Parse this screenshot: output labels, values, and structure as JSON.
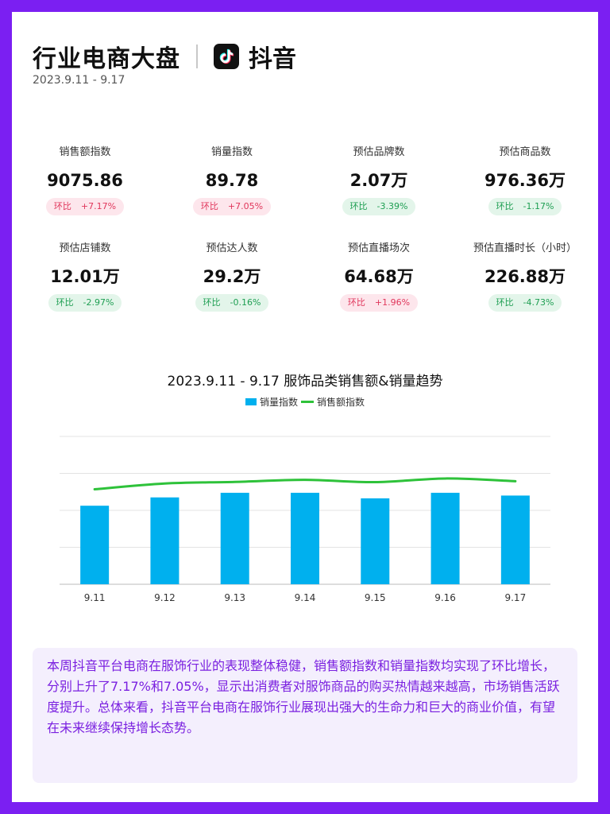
{
  "header": {
    "title": "行业电商大盘",
    "brand": "抖音",
    "brand_icon": "douyin-logo-icon",
    "date_range": "2023.9.11 - 9.17"
  },
  "metrics": [
    {
      "label": "销售额指数",
      "value": "9075.86",
      "change_label": "环比",
      "change": "+7.17%",
      "trend": "up"
    },
    {
      "label": "销量指数",
      "value": "89.78",
      "change_label": "环比",
      "change": "+7.05%",
      "trend": "up"
    },
    {
      "label": "预估品牌数",
      "value": "2.07万",
      "change_label": "环比",
      "change": "-3.39%",
      "trend": "down"
    },
    {
      "label": "预估商品数",
      "value": "976.36万",
      "change_label": "环比",
      "change": "-1.17%",
      "trend": "down"
    },
    {
      "label": "预估店铺数",
      "value": "12.01万",
      "change_label": "环比",
      "change": "-2.97%",
      "trend": "down"
    },
    {
      "label": "预估达人数",
      "value": "29.2万",
      "change_label": "环比",
      "change": "-0.16%",
      "trend": "down"
    },
    {
      "label": "预估直播场次",
      "value": "64.68万",
      "change_label": "环比",
      "change": "+1.96%",
      "trend": "up"
    },
    {
      "label": "预估直播时长（小时）",
      "value": "226.88万",
      "change_label": "环比",
      "change": "-4.73%",
      "trend": "down"
    }
  ],
  "colors": {
    "up_text": "#e0365b",
    "up_bg": "#fde6ec",
    "down_text": "#1e9e52",
    "down_bg": "#e3f5ea",
    "bar": "#00b0ee",
    "line": "#2ec23a",
    "border": "#7b1ff2"
  },
  "chart_data": {
    "type": "bar",
    "title": "2023.9.11 - 9.17 服饰品类销售额&销量趋势",
    "categories": [
      "9.11",
      "9.12",
      "9.13",
      "9.14",
      "9.15",
      "9.16",
      "9.17"
    ],
    "series": [
      {
        "name": "销量指数",
        "type": "bar",
        "values": [
          85,
          94,
          99,
          99,
          93,
          99,
          96
        ]
      },
      {
        "name": "销售额指数",
        "type": "line",
        "values": [
          8350,
          8860,
          9000,
          9180,
          8980,
          9300,
          9060
        ]
      }
    ],
    "bar_ylim": [
      0,
      160
    ],
    "line_ylim": [
      0,
      13000
    ],
    "grid": true,
    "legend_position": "top-center",
    "xlabel": "",
    "ylabel": ""
  },
  "summary": "本周抖音平台电商在服饰行业的表现整体稳健，销售额指数和销量指数均实现了环比增长，分别上升了7.17%和7.05%，显示出消费者对服饰商品的购买热情越来越高，市场销售活跃度提升。总体来看，抖音平台电商在服饰行业展现出强大的生命力和巨大的商业价值，有望在未来继续保持增长态势。"
}
